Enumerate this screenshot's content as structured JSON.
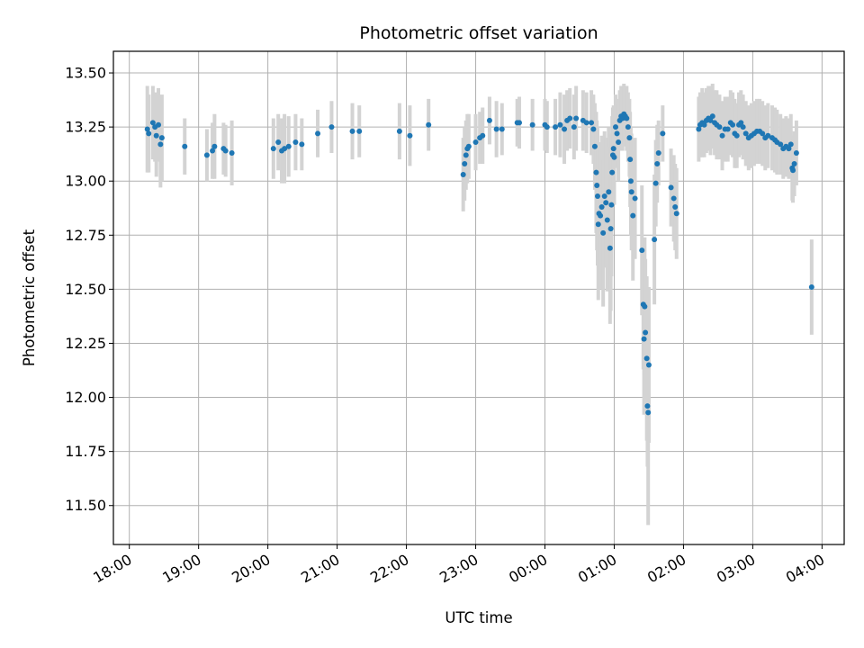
{
  "chart_data": {
    "type": "scatter",
    "title": "Photometric offset variation",
    "xlabel": "UTC time",
    "ylabel": "Photometric offset",
    "x_unit": "UTC time (hours, day 1; values > 24 are next day)",
    "xlim": [
      17.77,
      28.32
    ],
    "ylim": [
      11.32,
      13.6
    ],
    "x_ticks": [
      {
        "value": 18,
        "label": "18:00"
      },
      {
        "value": 19,
        "label": "19:00"
      },
      {
        "value": 20,
        "label": "20:00"
      },
      {
        "value": 21,
        "label": "21:00"
      },
      {
        "value": 22,
        "label": "22:00"
      },
      {
        "value": 23,
        "label": "23:00"
      },
      {
        "value": 24,
        "label": "00:00"
      },
      {
        "value": 25,
        "label": "01:00"
      },
      {
        "value": 26,
        "label": "02:00"
      },
      {
        "value": 27,
        "label": "03:00"
      },
      {
        "value": 28,
        "label": "04:00"
      }
    ],
    "y_ticks": [
      {
        "value": 11.5,
        "label": "11.50"
      },
      {
        "value": 11.75,
        "label": "11.75"
      },
      {
        "value": 12.0,
        "label": "12.00"
      },
      {
        "value": 12.25,
        "label": "12.25"
      },
      {
        "value": 12.5,
        "label": "12.50"
      },
      {
        "value": 12.75,
        "label": "12.75"
      },
      {
        "value": 13.0,
        "label": "13.00"
      },
      {
        "value": 13.25,
        "label": "13.25"
      },
      {
        "value": 13.5,
        "label": "13.50"
      }
    ],
    "grid": true,
    "colors": {
      "points": "#1f77b4",
      "errorbars": "#d3d3d3",
      "grid": "#b0b0b0"
    },
    "series": [
      {
        "points": [
          {
            "x": 18.26,
            "y": 13.24,
            "err": 0.2
          },
          {
            "x": 18.28,
            "y": 13.22,
            "err": 0.18
          },
          {
            "x": 18.34,
            "y": 13.27,
            "err": 0.17
          },
          {
            "x": 18.37,
            "y": 13.25,
            "err": 0.16
          },
          {
            "x": 18.39,
            "y": 13.21,
            "err": 0.19
          },
          {
            "x": 18.42,
            "y": 13.26,
            "err": 0.17
          },
          {
            "x": 18.45,
            "y": 13.17,
            "err": 0.2
          },
          {
            "x": 18.47,
            "y": 13.2,
            "err": 0.2
          },
          {
            "x": 18.8,
            "y": 13.16,
            "err": 0.13
          },
          {
            "x": 19.12,
            "y": 13.12,
            "err": 0.12
          },
          {
            "x": 19.2,
            "y": 13.14,
            "err": 0.13
          },
          {
            "x": 19.23,
            "y": 13.16,
            "err": 0.15
          },
          {
            "x": 19.36,
            "y": 13.15,
            "err": 0.12
          },
          {
            "x": 19.39,
            "y": 13.14,
            "err": 0.12
          },
          {
            "x": 19.48,
            "y": 13.13,
            "err": 0.15
          },
          {
            "x": 20.08,
            "y": 13.15,
            "err": 0.14
          },
          {
            "x": 20.15,
            "y": 13.18,
            "err": 0.13
          },
          {
            "x": 20.2,
            "y": 13.14,
            "err": 0.15
          },
          {
            "x": 20.24,
            "y": 13.15,
            "err": 0.16
          },
          {
            "x": 20.3,
            "y": 13.16,
            "err": 0.14
          },
          {
            "x": 20.4,
            "y": 13.18,
            "err": 0.13
          },
          {
            "x": 20.49,
            "y": 13.17,
            "err": 0.12
          },
          {
            "x": 20.72,
            "y": 13.22,
            "err": 0.11
          },
          {
            "x": 20.92,
            "y": 13.25,
            "err": 0.12
          },
          {
            "x": 21.22,
            "y": 13.23,
            "err": 0.13
          },
          {
            "x": 21.32,
            "y": 13.23,
            "err": 0.12
          },
          {
            "x": 21.9,
            "y": 13.23,
            "err": 0.13
          },
          {
            "x": 22.05,
            "y": 13.21,
            "err": 0.14
          },
          {
            "x": 22.32,
            "y": 13.26,
            "err": 0.12
          },
          {
            "x": 22.82,
            "y": 13.03,
            "err": 0.17
          },
          {
            "x": 22.84,
            "y": 13.08,
            "err": 0.17
          },
          {
            "x": 22.86,
            "y": 13.12,
            "err": 0.16
          },
          {
            "x": 22.88,
            "y": 13.15,
            "err": 0.16
          },
          {
            "x": 22.9,
            "y": 13.16,
            "err": 0.15
          },
          {
            "x": 23.0,
            "y": 13.18,
            "err": 0.13
          },
          {
            "x": 23.06,
            "y": 13.2,
            "err": 0.12
          },
          {
            "x": 23.1,
            "y": 13.21,
            "err": 0.13
          },
          {
            "x": 23.2,
            "y": 13.28,
            "err": 0.11
          },
          {
            "x": 23.3,
            "y": 13.24,
            "err": 0.13
          },
          {
            "x": 23.38,
            "y": 13.24,
            "err": 0.12
          },
          {
            "x": 23.6,
            "y": 13.27,
            "err": 0.11
          },
          {
            "x": 23.63,
            "y": 13.27,
            "err": 0.12
          },
          {
            "x": 23.82,
            "y": 13.26,
            "err": 0.12
          },
          {
            "x": 24.0,
            "y": 13.26,
            "err": 0.12
          },
          {
            "x": 24.03,
            "y": 13.25,
            "err": 0.12
          },
          {
            "x": 24.15,
            "y": 13.25,
            "err": 0.13
          },
          {
            "x": 24.22,
            "y": 13.26,
            "err": 0.15
          },
          {
            "x": 24.28,
            "y": 13.24,
            "err": 0.16
          },
          {
            "x": 24.32,
            "y": 13.28,
            "err": 0.14
          },
          {
            "x": 24.36,
            "y": 13.29,
            "err": 0.14
          },
          {
            "x": 24.42,
            "y": 13.25,
            "err": 0.15
          },
          {
            "x": 24.45,
            "y": 13.29,
            "err": 0.15
          },
          {
            "x": 24.55,
            "y": 13.28,
            "err": 0.14
          },
          {
            "x": 24.6,
            "y": 13.27,
            "err": 0.14
          },
          {
            "x": 24.67,
            "y": 13.27,
            "err": 0.15
          },
          {
            "x": 24.7,
            "y": 13.24,
            "err": 0.16
          },
          {
            "x": 24.72,
            "y": 13.16,
            "err": 0.2
          },
          {
            "x": 24.74,
            "y": 13.04,
            "err": 0.28
          },
          {
            "x": 24.75,
            "y": 12.98,
            "err": 0.3
          },
          {
            "x": 24.76,
            "y": 12.93,
            "err": 0.32
          },
          {
            "x": 24.77,
            "y": 12.8,
            "err": 0.35
          },
          {
            "x": 24.78,
            "y": 12.85,
            "err": 0.33
          },
          {
            "x": 24.8,
            "y": 12.84,
            "err": 0.34
          },
          {
            "x": 24.82,
            "y": 12.88,
            "err": 0.33
          },
          {
            "x": 24.84,
            "y": 12.76,
            "err": 0.34
          },
          {
            "x": 24.86,
            "y": 12.93,
            "err": 0.3
          },
          {
            "x": 24.88,
            "y": 12.9,
            "err": 0.3
          },
          {
            "x": 24.9,
            "y": 12.82,
            "err": 0.33
          },
          {
            "x": 24.92,
            "y": 12.95,
            "err": 0.3
          },
          {
            "x": 24.94,
            "y": 12.69,
            "err": 0.35
          },
          {
            "x": 24.95,
            "y": 12.78,
            "err": 0.38
          },
          {
            "x": 24.96,
            "y": 12.89,
            "err": 0.33
          },
          {
            "x": 24.97,
            "y": 13.04,
            "err": 0.26
          },
          {
            "x": 24.98,
            "y": 13.12,
            "err": 0.22
          },
          {
            "x": 24.99,
            "y": 13.15,
            "err": 0.2
          },
          {
            "x": 25.0,
            "y": 13.11,
            "err": 0.22
          },
          {
            "x": 25.02,
            "y": 13.25,
            "err": 0.15
          },
          {
            "x": 25.04,
            "y": 13.22,
            "err": 0.16
          },
          {
            "x": 25.06,
            "y": 13.18,
            "err": 0.18
          },
          {
            "x": 25.08,
            "y": 13.28,
            "err": 0.14
          },
          {
            "x": 25.1,
            "y": 13.3,
            "err": 0.14
          },
          {
            "x": 25.12,
            "y": 13.29,
            "err": 0.15
          },
          {
            "x": 25.14,
            "y": 13.31,
            "err": 0.14
          },
          {
            "x": 25.16,
            "y": 13.3,
            "err": 0.14
          },
          {
            "x": 25.18,
            "y": 13.29,
            "err": 0.15
          },
          {
            "x": 25.2,
            "y": 13.25,
            "err": 0.16
          },
          {
            "x": 25.22,
            "y": 13.2,
            "err": 0.18
          },
          {
            "x": 25.23,
            "y": 13.1,
            "err": 0.22
          },
          {
            "x": 25.24,
            "y": 13.0,
            "err": 0.25
          },
          {
            "x": 25.25,
            "y": 12.95,
            "err": 0.27
          },
          {
            "x": 25.27,
            "y": 12.84,
            "err": 0.3
          },
          {
            "x": 25.3,
            "y": 12.92,
            "err": 0.28
          },
          {
            "x": 25.4,
            "y": 12.68,
            "err": 0.3
          },
          {
            "x": 25.42,
            "y": 12.43,
            "err": 0.3
          },
          {
            "x": 25.43,
            "y": 12.27,
            "err": 0.35
          },
          {
            "x": 25.44,
            "y": 12.42,
            "err": 0.32
          },
          {
            "x": 25.45,
            "y": 12.3,
            "err": 0.34
          },
          {
            "x": 25.47,
            "y": 12.18,
            "err": 0.38
          },
          {
            "x": 25.48,
            "y": 11.96,
            "err": 0.28
          },
          {
            "x": 25.49,
            "y": 11.93,
            "err": 0.52
          },
          {
            "x": 25.5,
            "y": 12.15,
            "err": 0.36
          },
          {
            "x": 25.58,
            "y": 12.73,
            "err": 0.3
          },
          {
            "x": 25.6,
            "y": 12.99,
            "err": 0.2
          },
          {
            "x": 25.62,
            "y": 13.08,
            "err": 0.18
          },
          {
            "x": 25.64,
            "y": 13.13,
            "err": 0.15
          },
          {
            "x": 25.7,
            "y": 13.22,
            "err": 0.13
          },
          {
            "x": 25.82,
            "y": 12.97,
            "err": 0.18
          },
          {
            "x": 25.86,
            "y": 12.92,
            "err": 0.2
          },
          {
            "x": 25.88,
            "y": 12.88,
            "err": 0.2
          },
          {
            "x": 25.9,
            "y": 12.85,
            "err": 0.21
          },
          {
            "x": 26.22,
            "y": 13.24,
            "err": 0.15
          },
          {
            "x": 26.24,
            "y": 13.26,
            "err": 0.15
          },
          {
            "x": 26.27,
            "y": 13.27,
            "err": 0.16
          },
          {
            "x": 26.3,
            "y": 13.26,
            "err": 0.15
          },
          {
            "x": 26.33,
            "y": 13.28,
            "err": 0.15
          },
          {
            "x": 26.36,
            "y": 13.29,
            "err": 0.15
          },
          {
            "x": 26.39,
            "y": 13.28,
            "err": 0.16
          },
          {
            "x": 26.42,
            "y": 13.3,
            "err": 0.15
          },
          {
            "x": 26.45,
            "y": 13.27,
            "err": 0.15
          },
          {
            "x": 26.48,
            "y": 13.26,
            "err": 0.16
          },
          {
            "x": 26.52,
            "y": 13.25,
            "err": 0.15
          },
          {
            "x": 26.56,
            "y": 13.21,
            "err": 0.16
          },
          {
            "x": 26.6,
            "y": 13.24,
            "err": 0.15
          },
          {
            "x": 26.64,
            "y": 13.24,
            "err": 0.15
          },
          {
            "x": 26.68,
            "y": 13.27,
            "err": 0.15
          },
          {
            "x": 26.71,
            "y": 13.26,
            "err": 0.15
          },
          {
            "x": 26.74,
            "y": 13.22,
            "err": 0.16
          },
          {
            "x": 26.77,
            "y": 13.21,
            "err": 0.15
          },
          {
            "x": 26.8,
            "y": 13.26,
            "err": 0.15
          },
          {
            "x": 26.83,
            "y": 13.27,
            "err": 0.15
          },
          {
            "x": 26.86,
            "y": 13.25,
            "err": 0.15
          },
          {
            "x": 26.9,
            "y": 13.22,
            "err": 0.15
          },
          {
            "x": 26.94,
            "y": 13.2,
            "err": 0.15
          },
          {
            "x": 26.98,
            "y": 13.21,
            "err": 0.15
          },
          {
            "x": 27.02,
            "y": 13.22,
            "err": 0.15
          },
          {
            "x": 27.06,
            "y": 13.23,
            "err": 0.15
          },
          {
            "x": 27.1,
            "y": 13.23,
            "err": 0.15
          },
          {
            "x": 27.14,
            "y": 13.22,
            "err": 0.15
          },
          {
            "x": 27.18,
            "y": 13.2,
            "err": 0.15
          },
          {
            "x": 27.22,
            "y": 13.21,
            "err": 0.15
          },
          {
            "x": 27.28,
            "y": 13.2,
            "err": 0.15
          },
          {
            "x": 27.32,
            "y": 13.19,
            "err": 0.15
          },
          {
            "x": 27.35,
            "y": 13.18,
            "err": 0.15
          },
          {
            "x": 27.4,
            "y": 13.17,
            "err": 0.14
          },
          {
            "x": 27.44,
            "y": 13.15,
            "err": 0.14
          },
          {
            "x": 27.48,
            "y": 13.16,
            "err": 0.14
          },
          {
            "x": 27.52,
            "y": 13.15,
            "err": 0.14
          },
          {
            "x": 27.55,
            "y": 13.17,
            "err": 0.14
          },
          {
            "x": 27.57,
            "y": 13.06,
            "err": 0.15
          },
          {
            "x": 27.58,
            "y": 13.05,
            "err": 0.15
          },
          {
            "x": 27.6,
            "y": 13.08,
            "err": 0.15
          },
          {
            "x": 27.63,
            "y": 13.13,
            "err": 0.15
          },
          {
            "x": 27.85,
            "y": 12.51,
            "err": 0.22
          }
        ]
      }
    ]
  }
}
